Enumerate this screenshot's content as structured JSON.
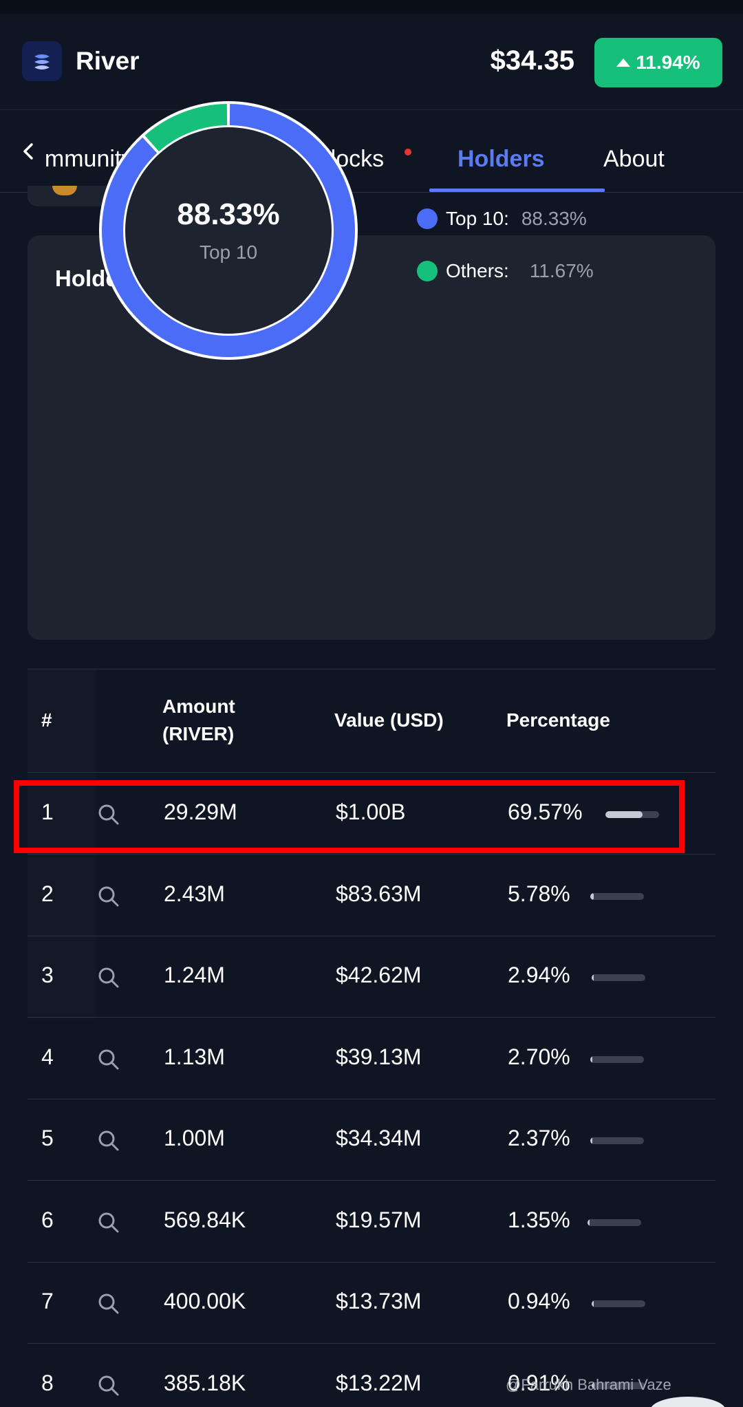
{
  "header": {
    "app_name": "River",
    "price": "$34.35",
    "change": "11.94%",
    "change_color": "#16c07a"
  },
  "tabs": [
    {
      "label": "Community",
      "visible_label": "ommunity",
      "active": false
    },
    {
      "label": "Token Unlocks",
      "active": false,
      "badge": "red-dot"
    },
    {
      "label": "Holders",
      "active": true
    },
    {
      "label": "About",
      "active": false
    }
  ],
  "distribution": {
    "title": "Holders Distribution",
    "center_value": "88.33%",
    "center_label": "Top 10",
    "legend": [
      {
        "name": "Top 10:",
        "value": "88.33%",
        "color": "#4a6cf7"
      },
      {
        "name": "Others:",
        "value": "11.67%",
        "color": "#16c07a"
      }
    ],
    "slices": [
      {
        "name": "Top 10",
        "percent": 88.33,
        "color": "#4a6cf7"
      },
      {
        "name": "Others",
        "percent": 11.67,
        "color": "#16c07a"
      }
    ]
  },
  "table": {
    "headers": {
      "rank": "#",
      "amount_line1": "Amount",
      "amount_line2": "(RIVER)",
      "value": "Value (USD)",
      "percentage": "Percentage"
    },
    "rows": [
      {
        "rank": "1",
        "amount": "29.29M",
        "value": "$1.00B",
        "percentage": "69.57%",
        "pct": 69.57
      },
      {
        "rank": "2",
        "amount": "2.43M",
        "value": "$83.63M",
        "percentage": "5.78%",
        "pct": 5.78
      },
      {
        "rank": "3",
        "amount": "1.24M",
        "value": "$42.62M",
        "percentage": "2.94%",
        "pct": 2.94
      },
      {
        "rank": "4",
        "amount": "1.13M",
        "value": "$39.13M",
        "percentage": "2.70%",
        "pct": 2.7
      },
      {
        "rank": "5",
        "amount": "1.00M",
        "value": "$34.34M",
        "percentage": "2.37%",
        "pct": 2.37
      },
      {
        "rank": "6",
        "amount": "569.84K",
        "value": "$19.57M",
        "percentage": "1.35%",
        "pct": 1.35
      },
      {
        "rank": "7",
        "amount": "400.00K",
        "value": "$13.73M",
        "percentage": "0.94%",
        "pct": 0.94
      },
      {
        "rank": "8",
        "amount": "385.18K",
        "value": "$13.22M",
        "percentage": "0.91%",
        "pct": 0.91
      }
    ],
    "highlight_color": "#ff0000"
  },
  "watermark": "@Farrukh Bahrami Vaze",
  "accent_color": "#5b7cf0"
}
